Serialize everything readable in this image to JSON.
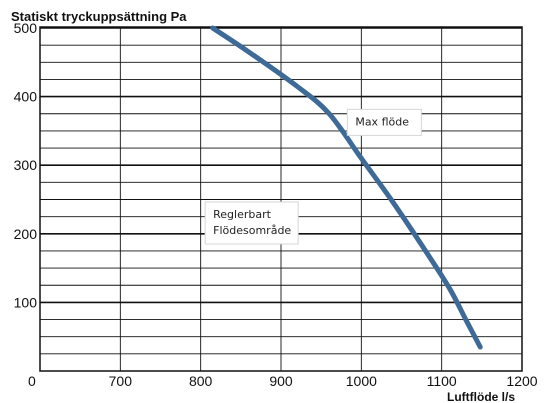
{
  "chart_data": {
    "type": "line",
    "title": "Statiskt tryckuppsättning Pa",
    "xlabel": "Luftflöde l/s",
    "ylabel": "",
    "xlim": [
      600,
      1200
    ],
    "ylim": [
      0,
      500
    ],
    "x_ticks": [
      700,
      800,
      900,
      1000,
      1100,
      1200
    ],
    "y_ticks": [
      100,
      200,
      300,
      400,
      500
    ],
    "origin_label": "0",
    "grid": true,
    "series": [
      {
        "color": "#3e6a98",
        "points": [
          {
            "x": 815,
            "y": 500
          },
          {
            "x": 860,
            "y": 465
          },
          {
            "x": 920,
            "y": 415
          },
          {
            "x": 960,
            "y": 375
          },
          {
            "x": 1000,
            "y": 310
          },
          {
            "x": 1040,
            "y": 245
          },
          {
            "x": 1080,
            "y": 175
          },
          {
            "x": 1110,
            "y": 120
          },
          {
            "x": 1130,
            "y": 75
          },
          {
            "x": 1148,
            "y": 35
          }
        ]
      }
    ],
    "annotations": [
      {
        "lines": [
          "Max flöde"
        ],
        "x": 1000,
        "y": 377
      },
      {
        "lines": [
          "Reglerbart",
          "Flödesområde"
        ],
        "x": 823,
        "y": 242
      }
    ]
  }
}
